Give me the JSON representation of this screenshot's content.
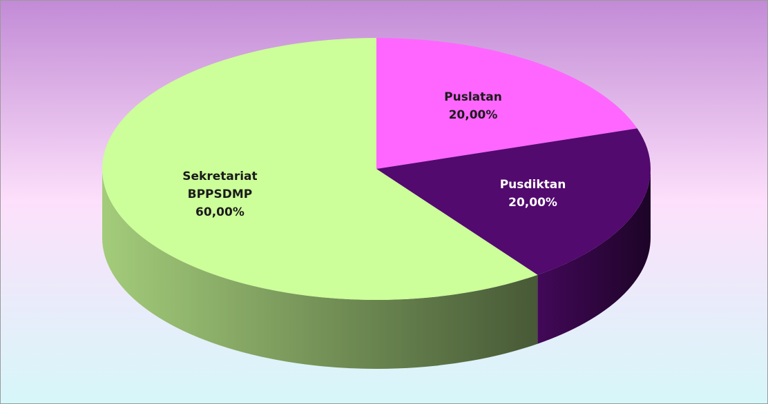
{
  "chart_data": {
    "type": "pie",
    "three_d": true,
    "categories": [
      "Puslatan",
      "Pusdiktan",
      "Sekretariat BPPSDMP"
    ],
    "values": [
      20,
      20,
      60
    ],
    "value_labels": [
      "20,00%",
      "20,00%",
      "60,00%"
    ],
    "colors": [
      "#ff66ff",
      "#520a6e",
      "#ccff99"
    ]
  }
}
